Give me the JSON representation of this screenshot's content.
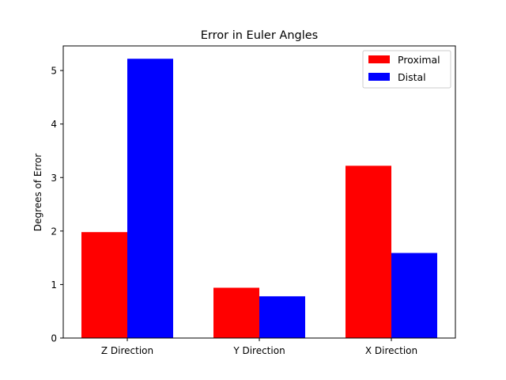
{
  "chart_data": {
    "type": "bar",
    "title": "Error in Euler Angles",
    "xlabel": "",
    "ylabel": "Degrees of Error",
    "categories": [
      "Z Direction",
      "Y Direction",
      "X Direction"
    ],
    "series": [
      {
        "name": "Proximal",
        "color": "#ff0000",
        "values": [
          1.98,
          0.94,
          3.22
        ]
      },
      {
        "name": "Distal",
        "color": "#0000ff",
        "values": [
          5.22,
          0.78,
          1.59
        ]
      }
    ],
    "ylim": [
      0,
      5.46
    ],
    "yticks": [
      0,
      1,
      2,
      3,
      4,
      5
    ],
    "ytick_labels": [
      "0",
      "1",
      "2",
      "3",
      "4",
      "5"
    ],
    "grid": false,
    "legend_position": "top-right"
  }
}
